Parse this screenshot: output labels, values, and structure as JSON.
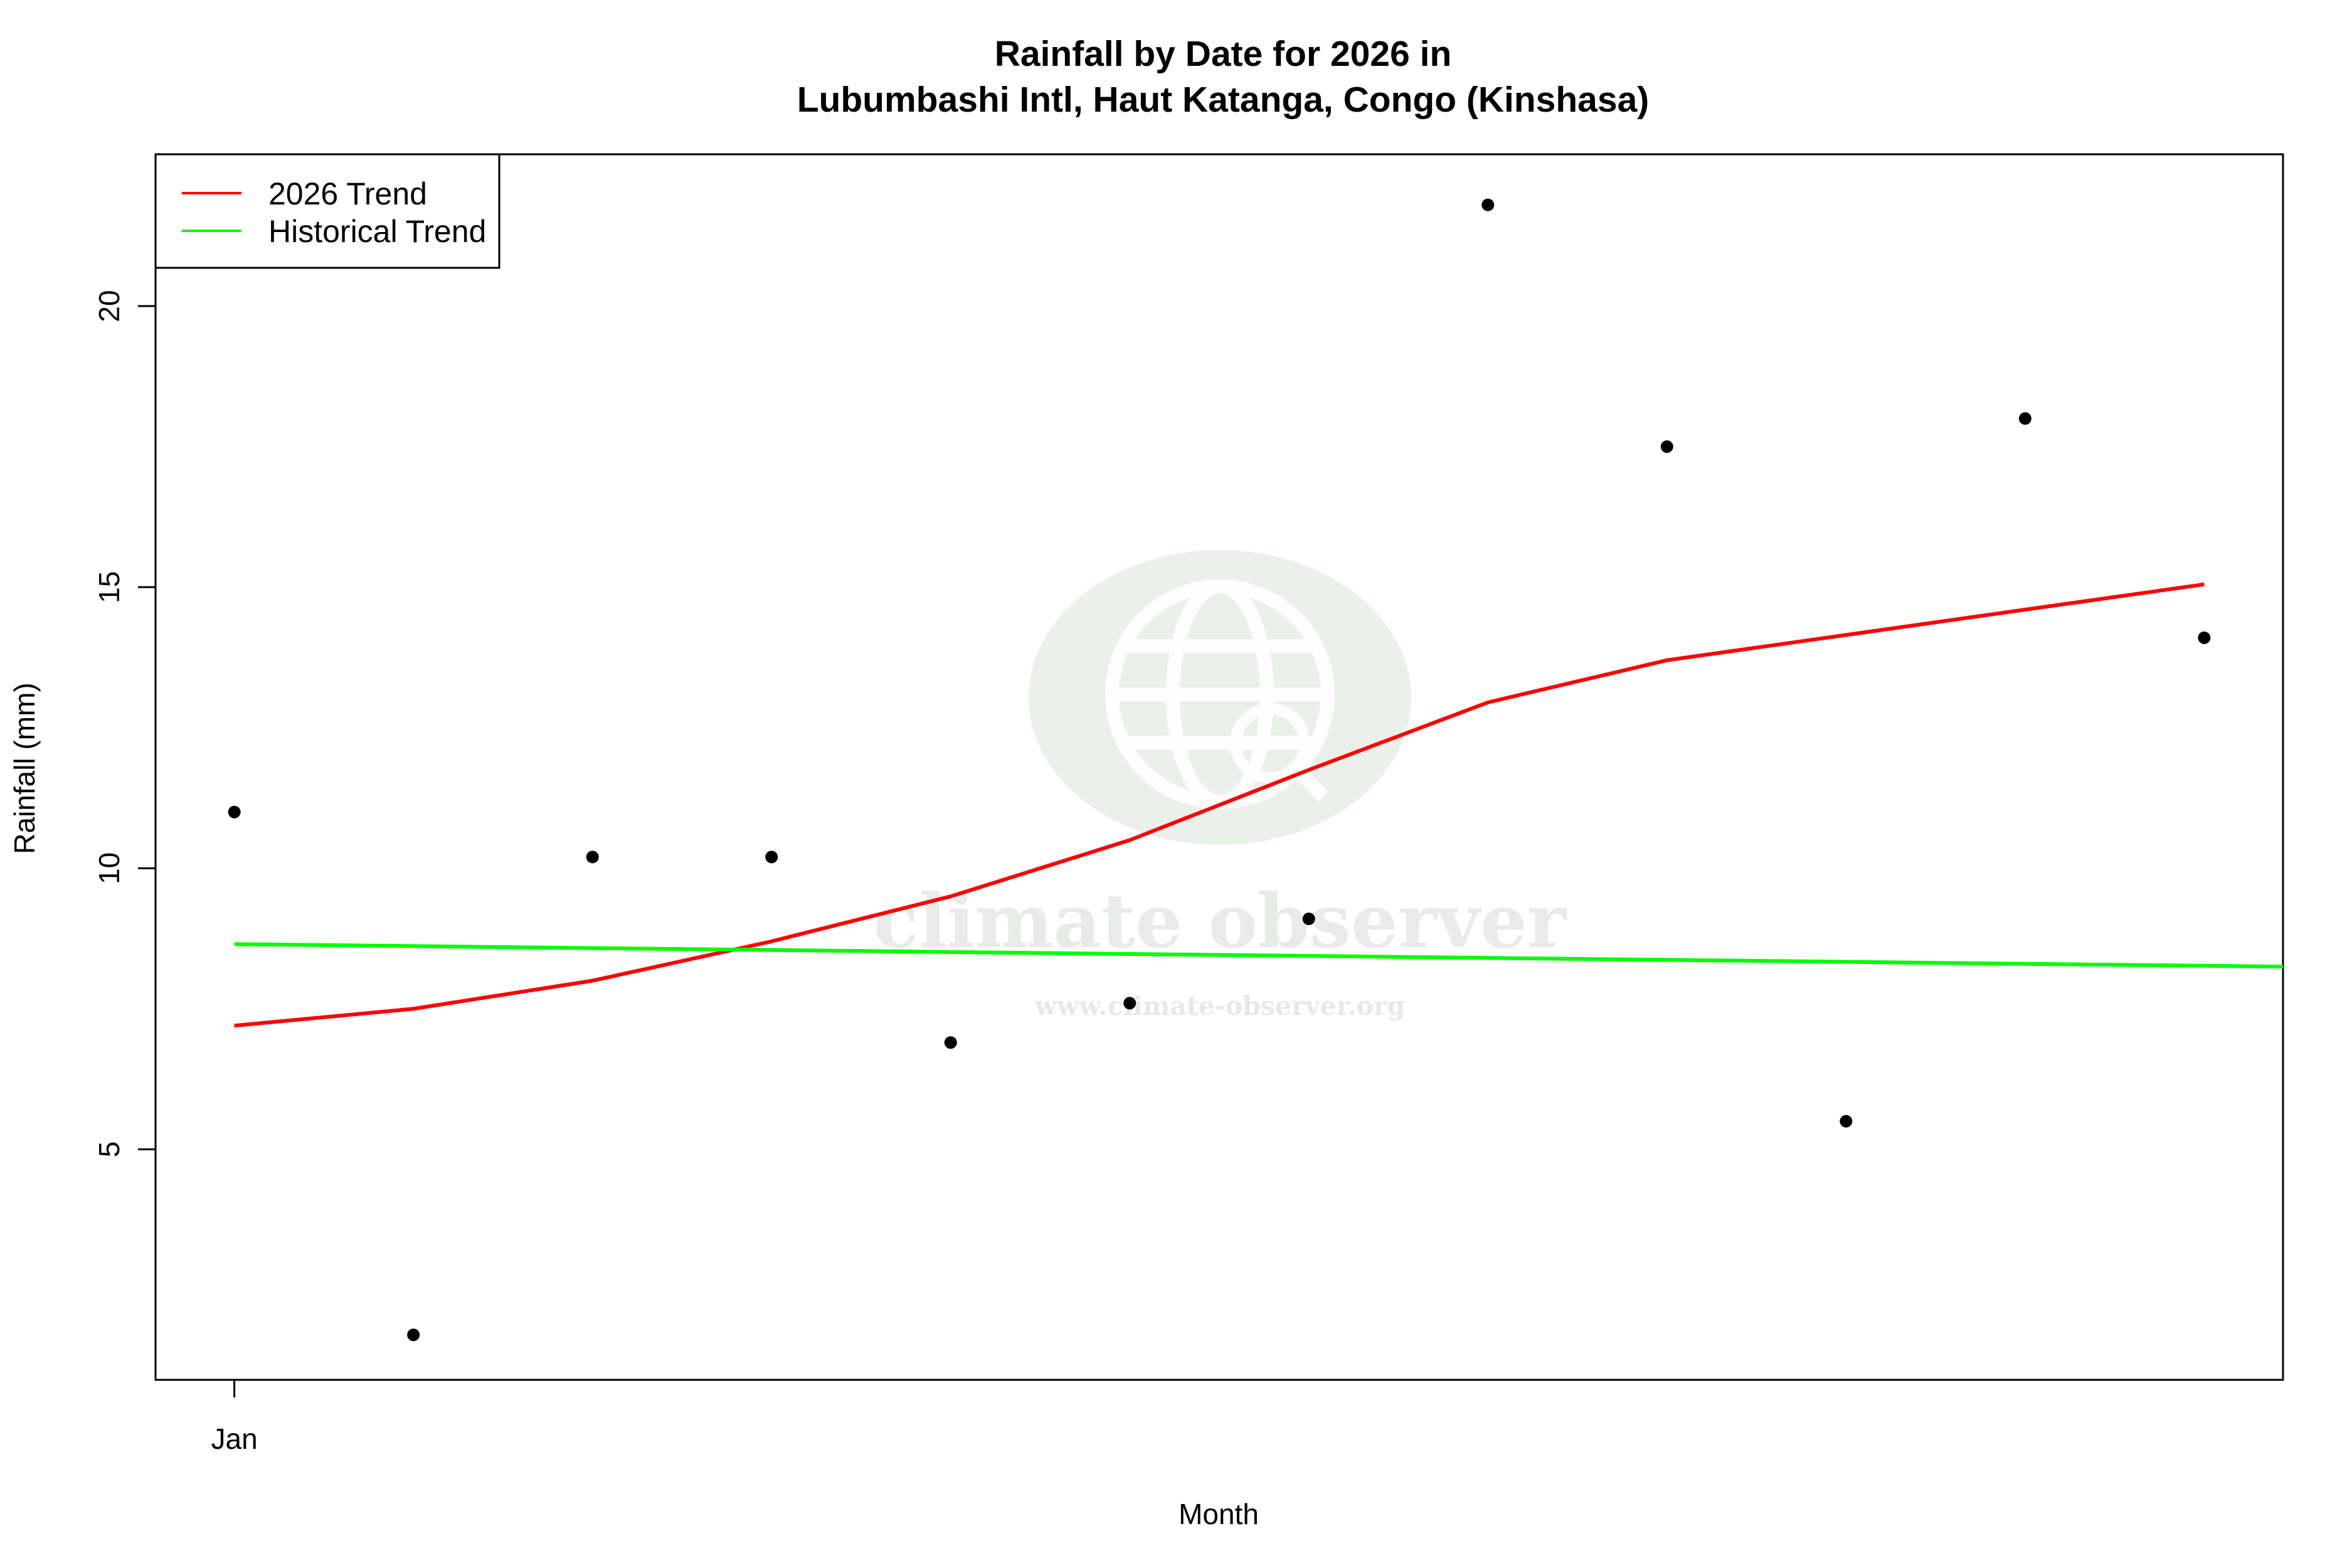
{
  "chart_data": {
    "type": "scatter",
    "title_line1": "Rainfall by Date for 2026 in",
    "title_line2": "Lubumbashi Intl, Haut Katanga, Congo (Kinshasa)",
    "xlabel": "Month",
    "ylabel": "Rainfall (mm)",
    "x_tick_labels": [
      "Jan"
    ],
    "y_ticks": [
      5,
      10,
      15,
      20
    ],
    "ylim": [
      0.9,
      22.7
    ],
    "xlim": [
      0.56,
      12.44
    ],
    "grid": false,
    "legend_position": "top-left",
    "legend": [
      {
        "label": "2026 Trend",
        "color": "#ff0000"
      },
      {
        "label": "Historical Trend",
        "color": "#00ff00"
      }
    ],
    "points": {
      "x": [
        1,
        2,
        3,
        4,
        5,
        6,
        7,
        8,
        9,
        10,
        11,
        12
      ],
      "y": [
        11.0,
        1.7,
        10.2,
        10.2,
        6.9,
        7.6,
        9.1,
        21.8,
        17.5,
        5.5,
        18.0,
        14.1
      ],
      "color": "#000000"
    },
    "series": [
      {
        "name": "2026 Trend",
        "color": "#ff0000",
        "x": [
          1,
          2,
          3,
          4,
          5,
          6,
          7,
          8,
          9,
          10,
          11,
          12
        ],
        "y": [
          7.2,
          7.5,
          8.0,
          8.7,
          9.5,
          10.5,
          11.75,
          12.95,
          13.7,
          14.15,
          14.6,
          15.05
        ]
      },
      {
        "name": "Historical Trend",
        "color": "#00ff00",
        "x": [
          1,
          12.44
        ],
        "y": [
          8.65,
          8.25
        ]
      }
    ]
  },
  "watermark": {
    "name": "climate observer",
    "url": "www.climate-observer.org"
  }
}
